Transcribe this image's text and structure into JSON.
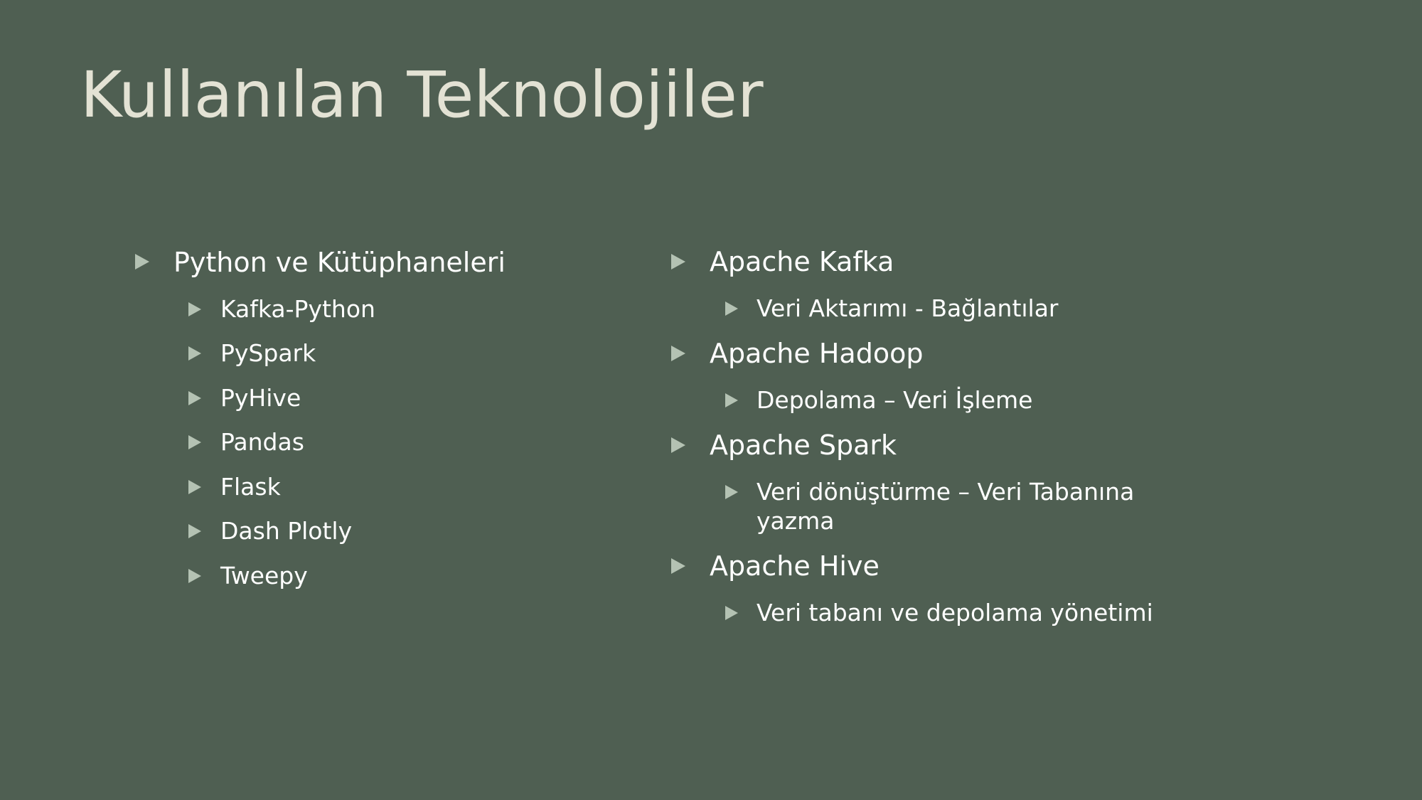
{
  "slide": {
    "title": "Kullanılan Teknolojiler",
    "left_column": {
      "heading": "Python ve Kütüphaneleri",
      "items": [
        "Kafka-Python",
        "PySpark",
        "PyHive",
        "Pandas",
        "Flask",
        "Dash Plotly",
        "Tweepy"
      ]
    },
    "right_column": [
      {
        "heading": "Apache Kafka",
        "detail": "Veri Aktarımı - Bağlantılar"
      },
      {
        "heading": "Apache Hadoop",
        "detail": "Depolama – Veri İşleme"
      },
      {
        "heading": "Apache Spark",
        "detail": "Veri dönüştürme – Veri Tabanına yazma"
      },
      {
        "heading": "Apache Hive",
        "detail": "Veri tabanı ve depolama yönetimi"
      }
    ]
  },
  "colors": {
    "background": "#4f5f52",
    "title": "#e3e2d4",
    "text": "#ffffff",
    "bullet": "#b4c2b3"
  }
}
